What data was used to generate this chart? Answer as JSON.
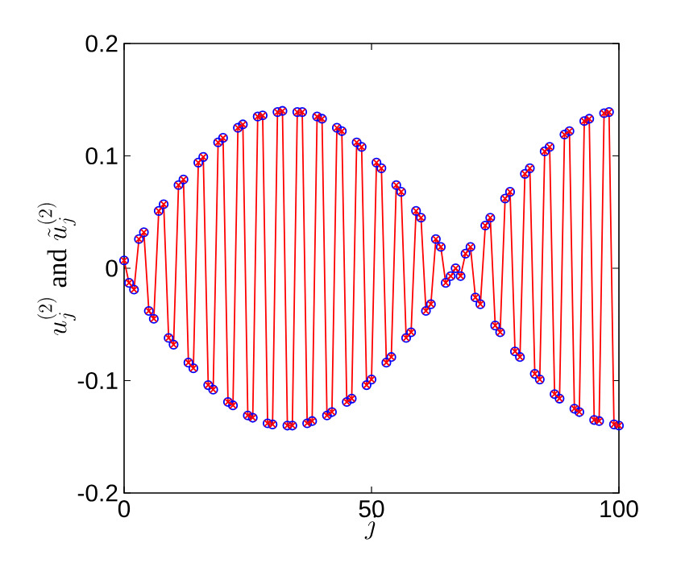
{
  "chart_data": {
    "type": "line",
    "xlabel": "j",
    "ylabel": "u_j^{(2)}\\ \\mathrm{and}\\ \\tilde{u}_j^{(2)}",
    "x": [
      0,
      1,
      2,
      3,
      4,
      5,
      6,
      7,
      8,
      9,
      10,
      11,
      12,
      13,
      14,
      15,
      16,
      17,
      18,
      19,
      20,
      21,
      22,
      23,
      24,
      25,
      26,
      27,
      28,
      29,
      30,
      31,
      32,
      33,
      34,
      35,
      36,
      37,
      38,
      39,
      40,
      41,
      42,
      43,
      44,
      45,
      46,
      47,
      48,
      49,
      50,
      51,
      52,
      53,
      54,
      55,
      56,
      57,
      58,
      59,
      60,
      61,
      62,
      63,
      64,
      65,
      66,
      67,
      68,
      69,
      70,
      71,
      72,
      73,
      74,
      75,
      76,
      77,
      78,
      79,
      80,
      81,
      82,
      83,
      84,
      85,
      86,
      87,
      88,
      89,
      90,
      91,
      92,
      93,
      94,
      95,
      96,
      97,
      98,
      99,
      100
    ],
    "series": [
      {
        "type": "scatter",
        "marker": "circle",
        "color": "#0000ff",
        "values": [
          0.007,
          -0.013,
          -0.019,
          0.026,
          0.032,
          -0.038,
          -0.045,
          0.051,
          0.057,
          -0.062,
          -0.068,
          0.074,
          0.079,
          -0.084,
          -0.089,
          0.094,
          0.099,
          -0.104,
          -0.108,
          0.112,
          0.116,
          -0.119,
          -0.122,
          0.125,
          0.128,
          -0.131,
          -0.133,
          0.135,
          0.136,
          -0.138,
          -0.139,
          0.139,
          0.14,
          -0.14,
          -0.14,
          0.139,
          0.139,
          -0.138,
          -0.136,
          0.135,
          0.133,
          -0.131,
          -0.128,
          0.125,
          0.122,
          -0.119,
          -0.116,
          0.112,
          0.108,
          -0.104,
          -0.099,
          0.094,
          0.089,
          -0.084,
          -0.079,
          0.074,
          0.068,
          -0.062,
          -0.057,
          0.051,
          0.045,
          -0.038,
          -0.032,
          0.026,
          0.019,
          -0.013,
          -0.007,
          0.0,
          -0.007,
          0.013,
          0.019,
          -0.026,
          -0.032,
          0.038,
          0.045,
          -0.051,
          -0.057,
          0.062,
          0.068,
          -0.074,
          -0.079,
          0.084,
          0.089,
          -0.094,
          -0.099,
          0.104,
          0.108,
          -0.112,
          -0.116,
          0.119,
          0.122,
          -0.125,
          -0.128,
          0.131,
          0.133,
          -0.135,
          -0.136,
          0.138,
          0.139,
          -0.139,
          -0.14
        ]
      },
      {
        "marker": "cross",
        "color": "#ff0000",
        "values": [
          0.007,
          -0.013,
          -0.019,
          0.026,
          0.032,
          -0.038,
          -0.045,
          0.051,
          0.057,
          -0.062,
          -0.068,
          0.074,
          0.079,
          -0.084,
          -0.089,
          0.094,
          0.099,
          -0.104,
          -0.108,
          0.112,
          0.116,
          -0.119,
          -0.122,
          0.125,
          0.128,
          -0.131,
          -0.133,
          0.135,
          0.136,
          -0.138,
          -0.139,
          0.139,
          0.14,
          -0.14,
          -0.14,
          0.139,
          0.139,
          -0.138,
          -0.136,
          0.135,
          0.133,
          -0.131,
          -0.128,
          0.125,
          0.122,
          -0.119,
          -0.116,
          0.112,
          0.108,
          -0.104,
          -0.099,
          0.094,
          0.089,
          -0.084,
          -0.079,
          0.074,
          0.068,
          -0.062,
          -0.057,
          0.051,
          0.045,
          -0.038,
          -0.032,
          0.026,
          0.019,
          -0.013,
          -0.007,
          0.0,
          -0.007,
          0.013,
          0.019,
          -0.026,
          -0.032,
          0.038,
          0.045,
          -0.051,
          -0.057,
          0.062,
          0.068,
          -0.074,
          -0.079,
          0.084,
          0.089,
          -0.094,
          -0.099,
          0.104,
          0.108,
          -0.112,
          -0.116,
          0.119,
          0.122,
          -0.125,
          -0.128,
          0.131,
          0.133,
          -0.135,
          -0.136,
          0.138,
          0.139,
          -0.139,
          -0.14
        ]
      }
    ],
    "xlim": [
      0,
      100
    ],
    "xticks": [
      0,
      50,
      100
    ],
    "ylim": [
      -0.2,
      0.2
    ],
    "yticks": [
      -0.2,
      -0.1,
      0,
      0.1,
      0.2
    ],
    "grid": false
  }
}
